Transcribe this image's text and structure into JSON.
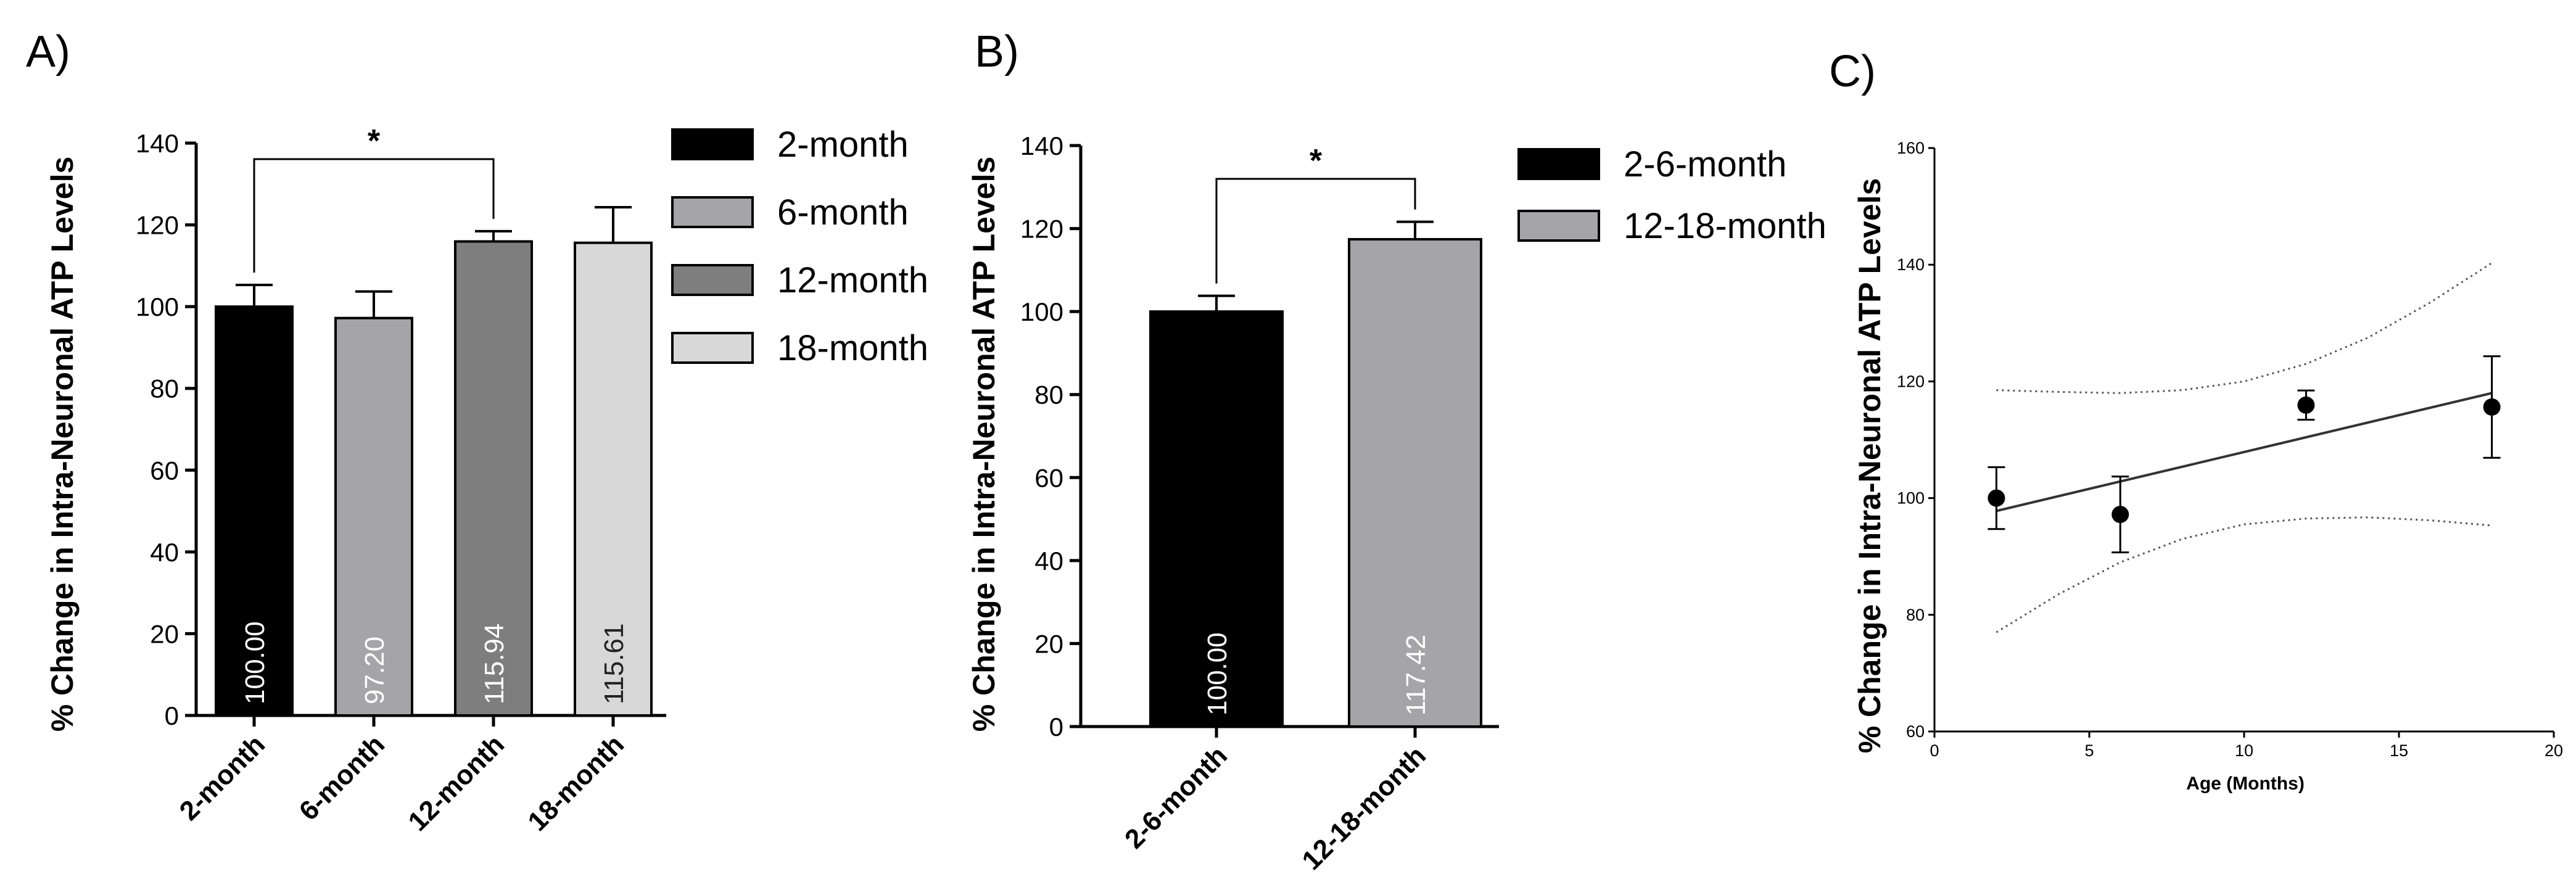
{
  "chart_data": [
    {
      "panel": "A)",
      "type": "bar",
      "ylabel": "% Change in Intra-Neuronal ATP Levels",
      "ylim": [
        0,
        140
      ],
      "yticks": [
        "0",
        "20",
        "40",
        "60",
        "80",
        "100",
        "120",
        "140"
      ],
      "categories": [
        "2-month",
        "6-month",
        "12-month",
        "18-month"
      ],
      "values": [
        100.0,
        97.2,
        115.94,
        115.61
      ],
      "value_labels": [
        "100.00",
        "97.20",
        "115.94",
        "115.61"
      ],
      "errors": [
        5.3,
        6.5,
        2.5,
        8.7
      ],
      "colors": [
        "#000000",
        "#a5a5a8",
        "#7e7e7e",
        "#d8d8d8"
      ],
      "legend": [
        "2-month",
        "6-month",
        "12-month",
        "18-month"
      ],
      "significance": {
        "from": 0,
        "to": 2,
        "label": "*"
      }
    },
    {
      "panel": "B)",
      "type": "bar",
      "ylabel": "% Change in Intra-Neuronal ATP Levels",
      "ylim": [
        0,
        140
      ],
      "yticks": [
        "0",
        "20",
        "40",
        "60",
        "80",
        "100",
        "120",
        "140"
      ],
      "categories": [
        "2-6-month",
        "12-18-month"
      ],
      "values": [
        100.0,
        117.42
      ],
      "value_labels": [
        "100.00",
        "117.42"
      ],
      "errors": [
        3.8,
        4.2
      ],
      "colors": [
        "#000000",
        "#a5a5a8"
      ],
      "legend": [
        "2-6-month",
        "12-18-month"
      ],
      "significance": {
        "from": 0,
        "to": 1,
        "label": "*"
      }
    },
    {
      "panel": "C)",
      "type": "scatter",
      "xlabel": "Age (Months)",
      "ylabel": "% Change in Intra-Neuronal ATP Levels",
      "xlim": [
        0,
        20
      ],
      "ylim": [
        60,
        160
      ],
      "xticks": [
        "0",
        "5",
        "10",
        "15",
        "20"
      ],
      "yticks": [
        "60",
        "80",
        "100",
        "120",
        "140",
        "160"
      ],
      "points": [
        {
          "x": 2,
          "y": 100.0,
          "err": 5.3
        },
        {
          "x": 6,
          "y": 97.2,
          "err": 6.5
        },
        {
          "x": 12,
          "y": 115.94,
          "err": 2.5
        },
        {
          "x": 18,
          "y": 115.61,
          "err": 8.7
        }
      ],
      "fit_line": {
        "x": [
          2,
          18
        ],
        "y": [
          97.8,
          118.0
        ]
      },
      "confidence_band": {
        "x": [
          2,
          4,
          6,
          8,
          10,
          12,
          14,
          16,
          18
        ],
        "upper": [
          118.5,
          118.2,
          118.0,
          118.5,
          120.0,
          123.0,
          127.5,
          133.5,
          140.3
        ],
        "lower": [
          77.0,
          83.5,
          89.0,
          93.0,
          95.5,
          96.5,
          96.7,
          96.2,
          95.3
        ]
      }
    }
  ]
}
